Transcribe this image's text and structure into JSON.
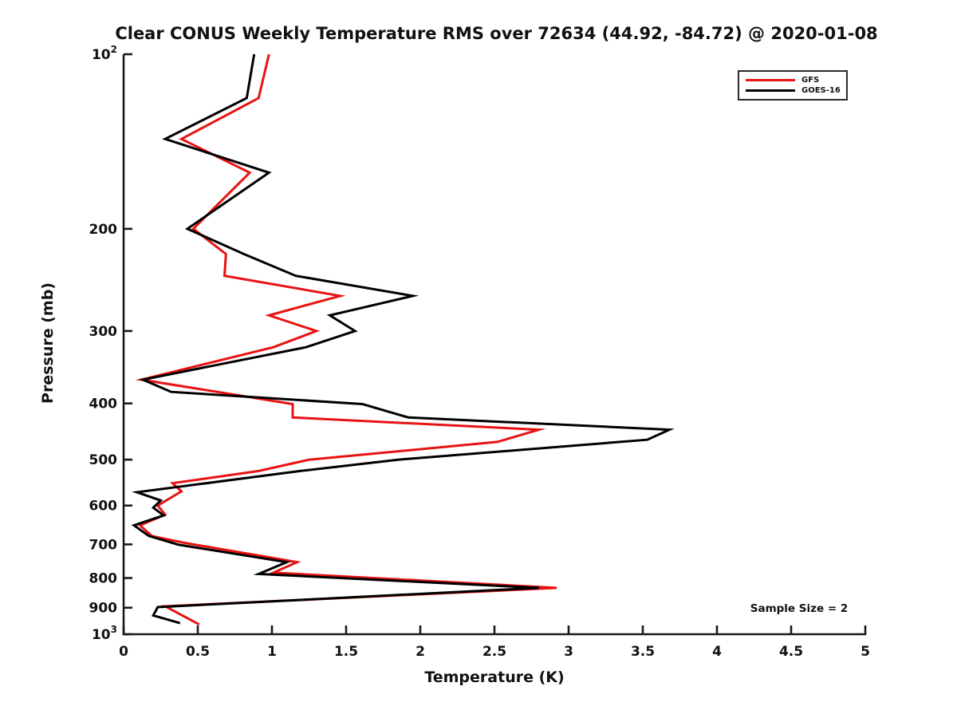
{
  "title": "Clear CONUS Weekly Temperature RMS over 72634 (44.92, -84.72) @ 2020-01-08",
  "annotation": "Sample Size = 2",
  "axes": {
    "xlabel": "Temperature (K)",
    "ylabel": "Pressure (mb)"
  },
  "legend": {
    "items": [
      {
        "label": "GFS",
        "color": "#e81313"
      },
      {
        "label": "GOES-16",
        "color": "#000000"
      }
    ]
  },
  "colors": {
    "axis": "#1a1a1a",
    "text": "#111111",
    "gfs": "#e81313",
    "goes16": "#000000"
  },
  "chart_data": {
    "type": "line",
    "title": "Clear CONUS Weekly Temperature RMS over 72634 (44.92, -84.72) @ 2020-01-08",
    "xlabel": "Temperature (K)",
    "ylabel": "Pressure (mb)",
    "xlim": [
      0,
      5
    ],
    "x_ticks": [
      0,
      0.5,
      1,
      1.5,
      2,
      2.5,
      3,
      3.5,
      4,
      4.5,
      5
    ],
    "x_tick_labels": [
      "0",
      "0.5",
      "1",
      "1.5",
      "2",
      "2.5",
      "3",
      "3.5",
      "4",
      "4.5",
      "5"
    ],
    "y_scale": "log",
    "y_inverted": true,
    "ylim": [
      100,
      1000
    ],
    "y_ticks": [
      100,
      200,
      300,
      400,
      500,
      600,
      700,
      800,
      900,
      1000
    ],
    "y_tick_labels": [
      "10^2",
      "200",
      "300",
      "400",
      "500",
      "600",
      "700",
      "800",
      "900",
      "10^3"
    ],
    "grid": false,
    "legend_position": "upper right",
    "annotation": "Sample Size = 2",
    "series": [
      {
        "name": "GFS",
        "color": "#e81313",
        "points_format": "[rms_K, pressure_mb]",
        "points": [
          [
            0.98,
            100
          ],
          [
            0.91,
            119
          ],
          [
            0.39,
            140
          ],
          [
            0.85,
            160
          ],
          [
            0.47,
            200
          ],
          [
            0.69,
            221
          ],
          [
            0.68,
            241
          ],
          [
            1.46,
            261
          ],
          [
            0.98,
            282
          ],
          [
            1.3,
            300
          ],
          [
            1.01,
            320
          ],
          [
            0.12,
            364
          ],
          [
            1.14,
            401
          ],
          [
            1.14,
            423
          ],
          [
            2.8,
            444
          ],
          [
            2.52,
            466
          ],
          [
            1.25,
            500
          ],
          [
            0.91,
            523
          ],
          [
            0.33,
            549
          ],
          [
            0.39,
            567
          ],
          [
            0.23,
            600
          ],
          [
            0.28,
            622
          ],
          [
            0.11,
            649
          ],
          [
            0.19,
            677
          ],
          [
            0.4,
            695
          ],
          [
            1.17,
            751
          ],
          [
            1.01,
            783
          ],
          [
            2.92,
            832
          ],
          [
            0.28,
            895
          ],
          [
            0.51,
            962
          ]
        ]
      },
      {
        "name": "GOES-16",
        "color": "#000000",
        "points_format": "[rms_K, pressure_mb]",
        "points": [
          [
            0.88,
            100
          ],
          [
            0.83,
            119
          ],
          [
            0.28,
            140
          ],
          [
            0.98,
            160
          ],
          [
            0.43,
            200
          ],
          [
            0.81,
            221
          ],
          [
            1.16,
            241
          ],
          [
            1.95,
            261
          ],
          [
            1.39,
            282
          ],
          [
            1.56,
            300
          ],
          [
            1.23,
            320
          ],
          [
            0.13,
            364
          ],
          [
            0.32,
            382
          ],
          [
            1.61,
            401
          ],
          [
            1.92,
            423
          ],
          [
            3.68,
            444
          ],
          [
            3.53,
            462
          ],
          [
            1.85,
            500
          ],
          [
            1.19,
            523
          ],
          [
            0.09,
            569
          ],
          [
            0.25,
            588
          ],
          [
            0.2,
            605
          ],
          [
            0.27,
            624
          ],
          [
            0.07,
            649
          ],
          [
            0.17,
            677
          ],
          [
            0.37,
            701
          ],
          [
            1.1,
            751
          ],
          [
            0.91,
            787
          ],
          [
            2.8,
            832
          ],
          [
            0.23,
            898
          ],
          [
            0.2,
            928
          ],
          [
            0.38,
            957
          ]
        ]
      }
    ]
  }
}
